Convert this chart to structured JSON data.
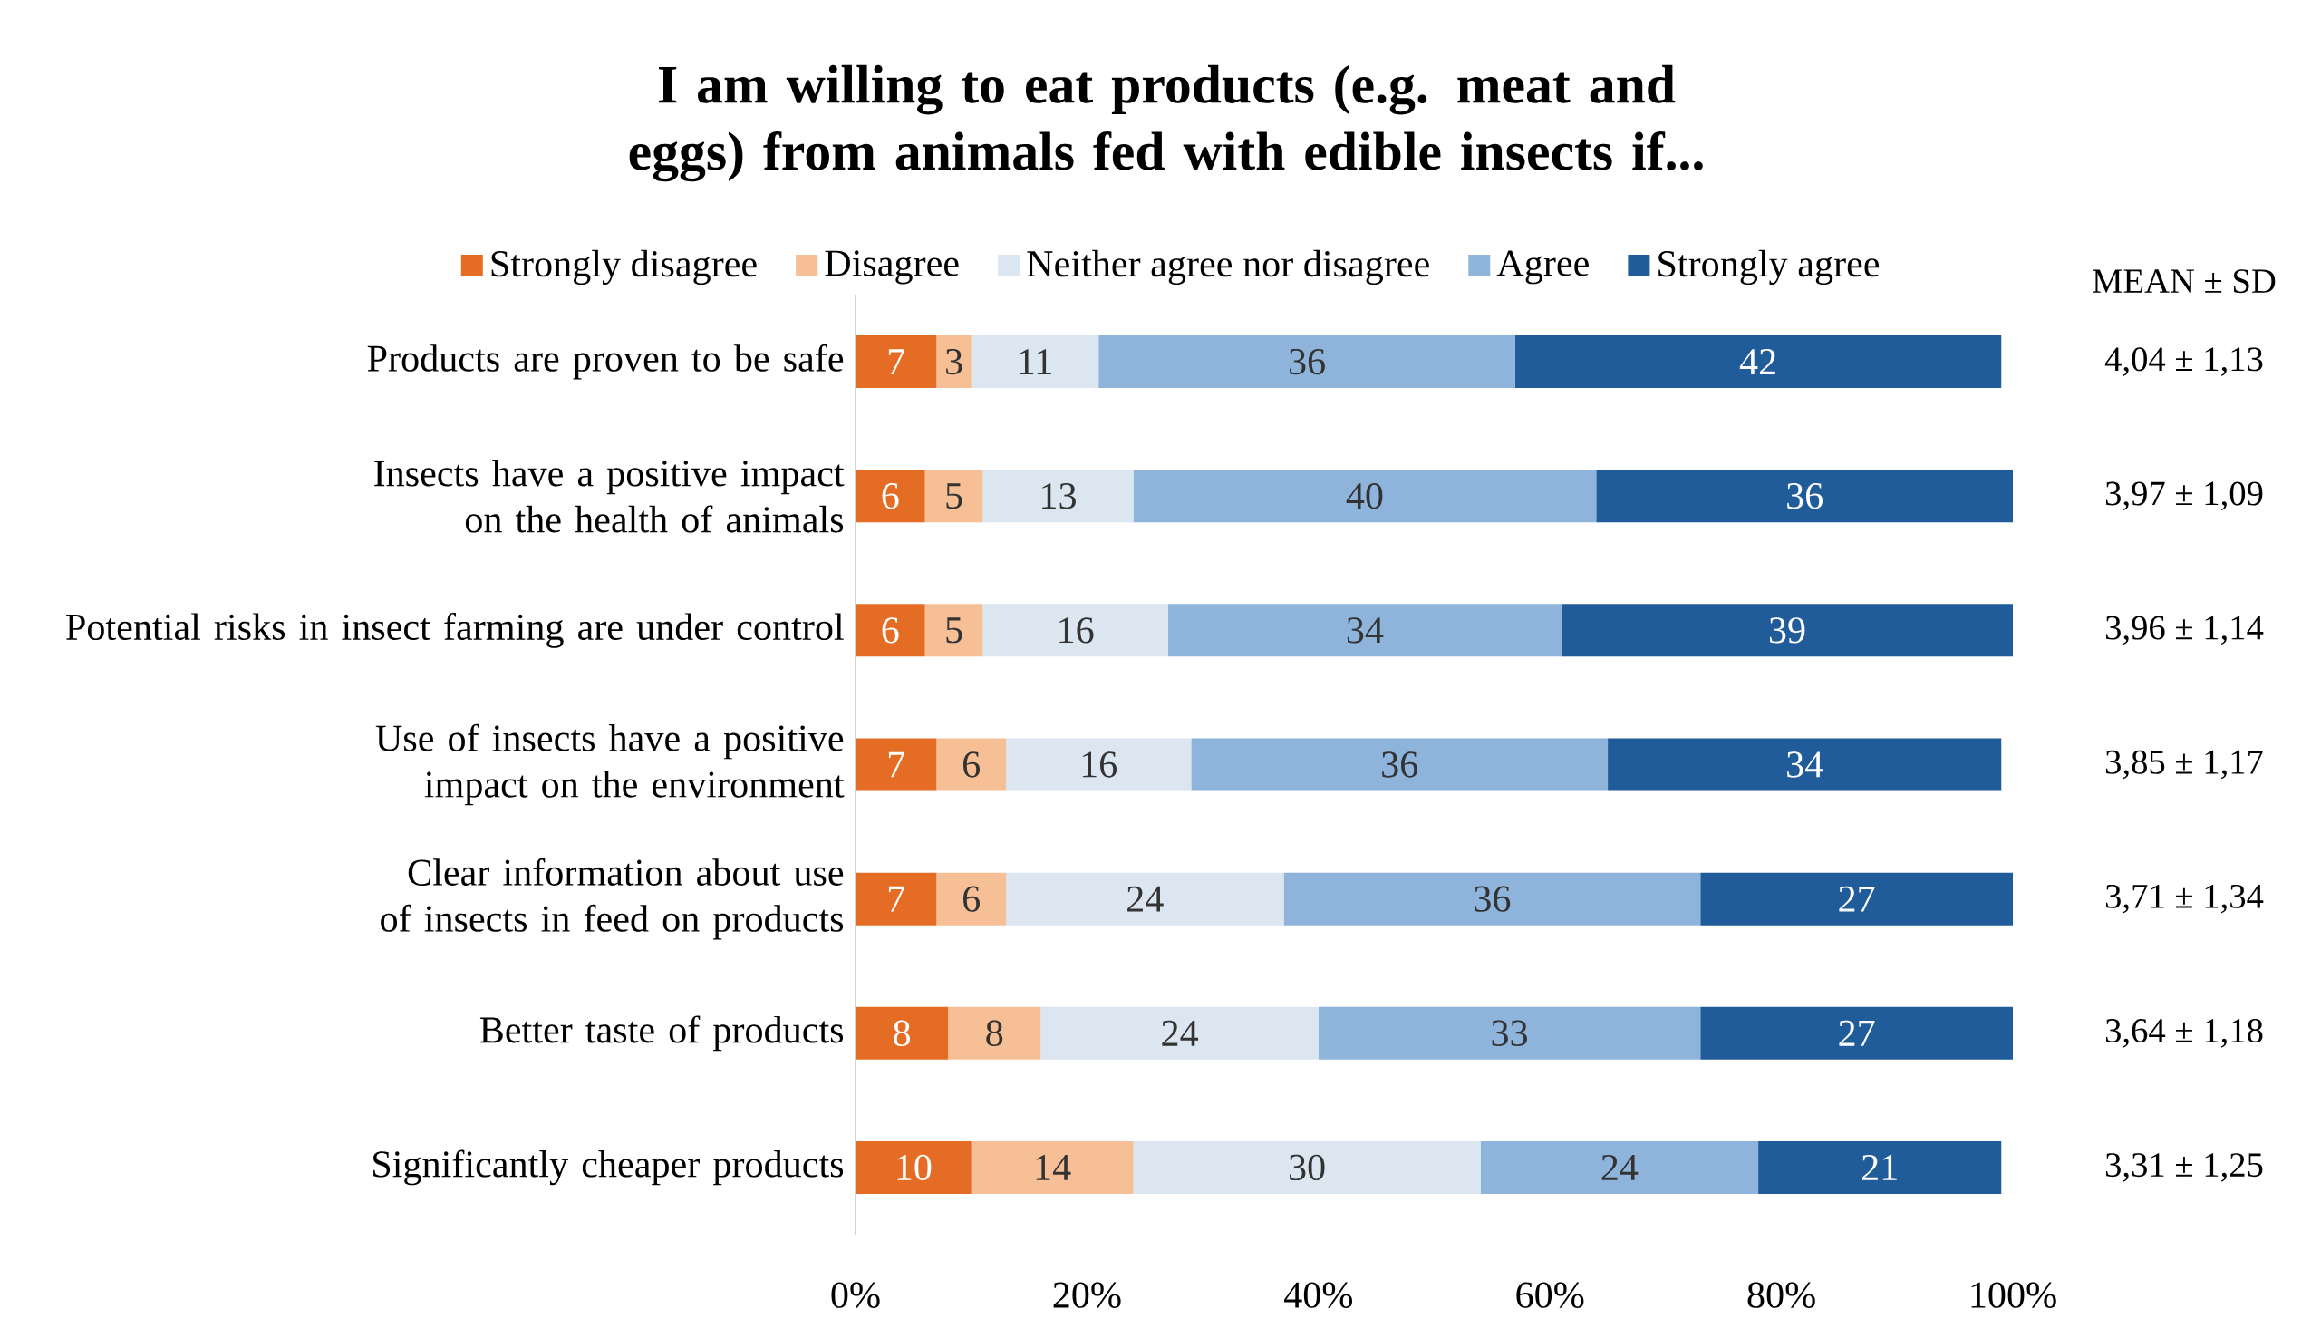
{
  "chart_data": {
    "type": "bar",
    "title": "I am willing to eat products (e.g. meat and eggs) from animals fed with edible insects if...",
    "orientation": "horizontal",
    "stacked": true,
    "data_labels": true,
    "legend": "top",
    "categories": [
      "Products are proven to be safe",
      "Insects have a positive impact on the health of animals",
      "Potential risks in insect farming are under control",
      "Use of insects have a positive impact on the environment",
      "Clear information about use of insects in feed on products",
      "Better taste of products",
      "Significantly cheaper products"
    ],
    "series": [
      {
        "name": "Strongly disagree",
        "color": "#e46c24",
        "values": [
          7,
          6,
          6,
          7,
          7,
          8,
          10
        ]
      },
      {
        "name": "Disagree",
        "color": "#f7bf95",
        "values": [
          3,
          5,
          5,
          6,
          6,
          8,
          14
        ]
      },
      {
        "name": "Neither agree nor disagree",
        "color": "#dce6f1",
        "values": [
          11,
          13,
          16,
          16,
          24,
          24,
          30
        ]
      },
      {
        "name": "Agree",
        "color": "#8fb4db",
        "values": [
          36,
          40,
          34,
          36,
          36,
          33,
          24
        ]
      },
      {
        "name": "Strongly agree",
        "color": "#1f5c99",
        "values": [
          42,
          36,
          39,
          34,
          27,
          27,
          21
        ]
      }
    ],
    "xlim": [
      0,
      100
    ],
    "xticks": [
      {
        "value": 0,
        "label": "0%"
      },
      {
        "value": 20,
        "label": "20%"
      },
      {
        "value": 40,
        "label": "40%"
      },
      {
        "value": 60,
        "label": "60%"
      },
      {
        "value": 80,
        "label": "80%"
      },
      {
        "value": 100,
        "label": "100%"
      }
    ],
    "annotations": [
      "MEAN ± SD",
      "4,04 ± 1,13",
      "3,97 ± 1,09",
      "3,96 ± 1,14",
      "3,85 ± 1,17",
      "3,71 ± 1,34",
      "3,64 ± 1,18",
      "3,31 ± 1,25"
    ]
  }
}
